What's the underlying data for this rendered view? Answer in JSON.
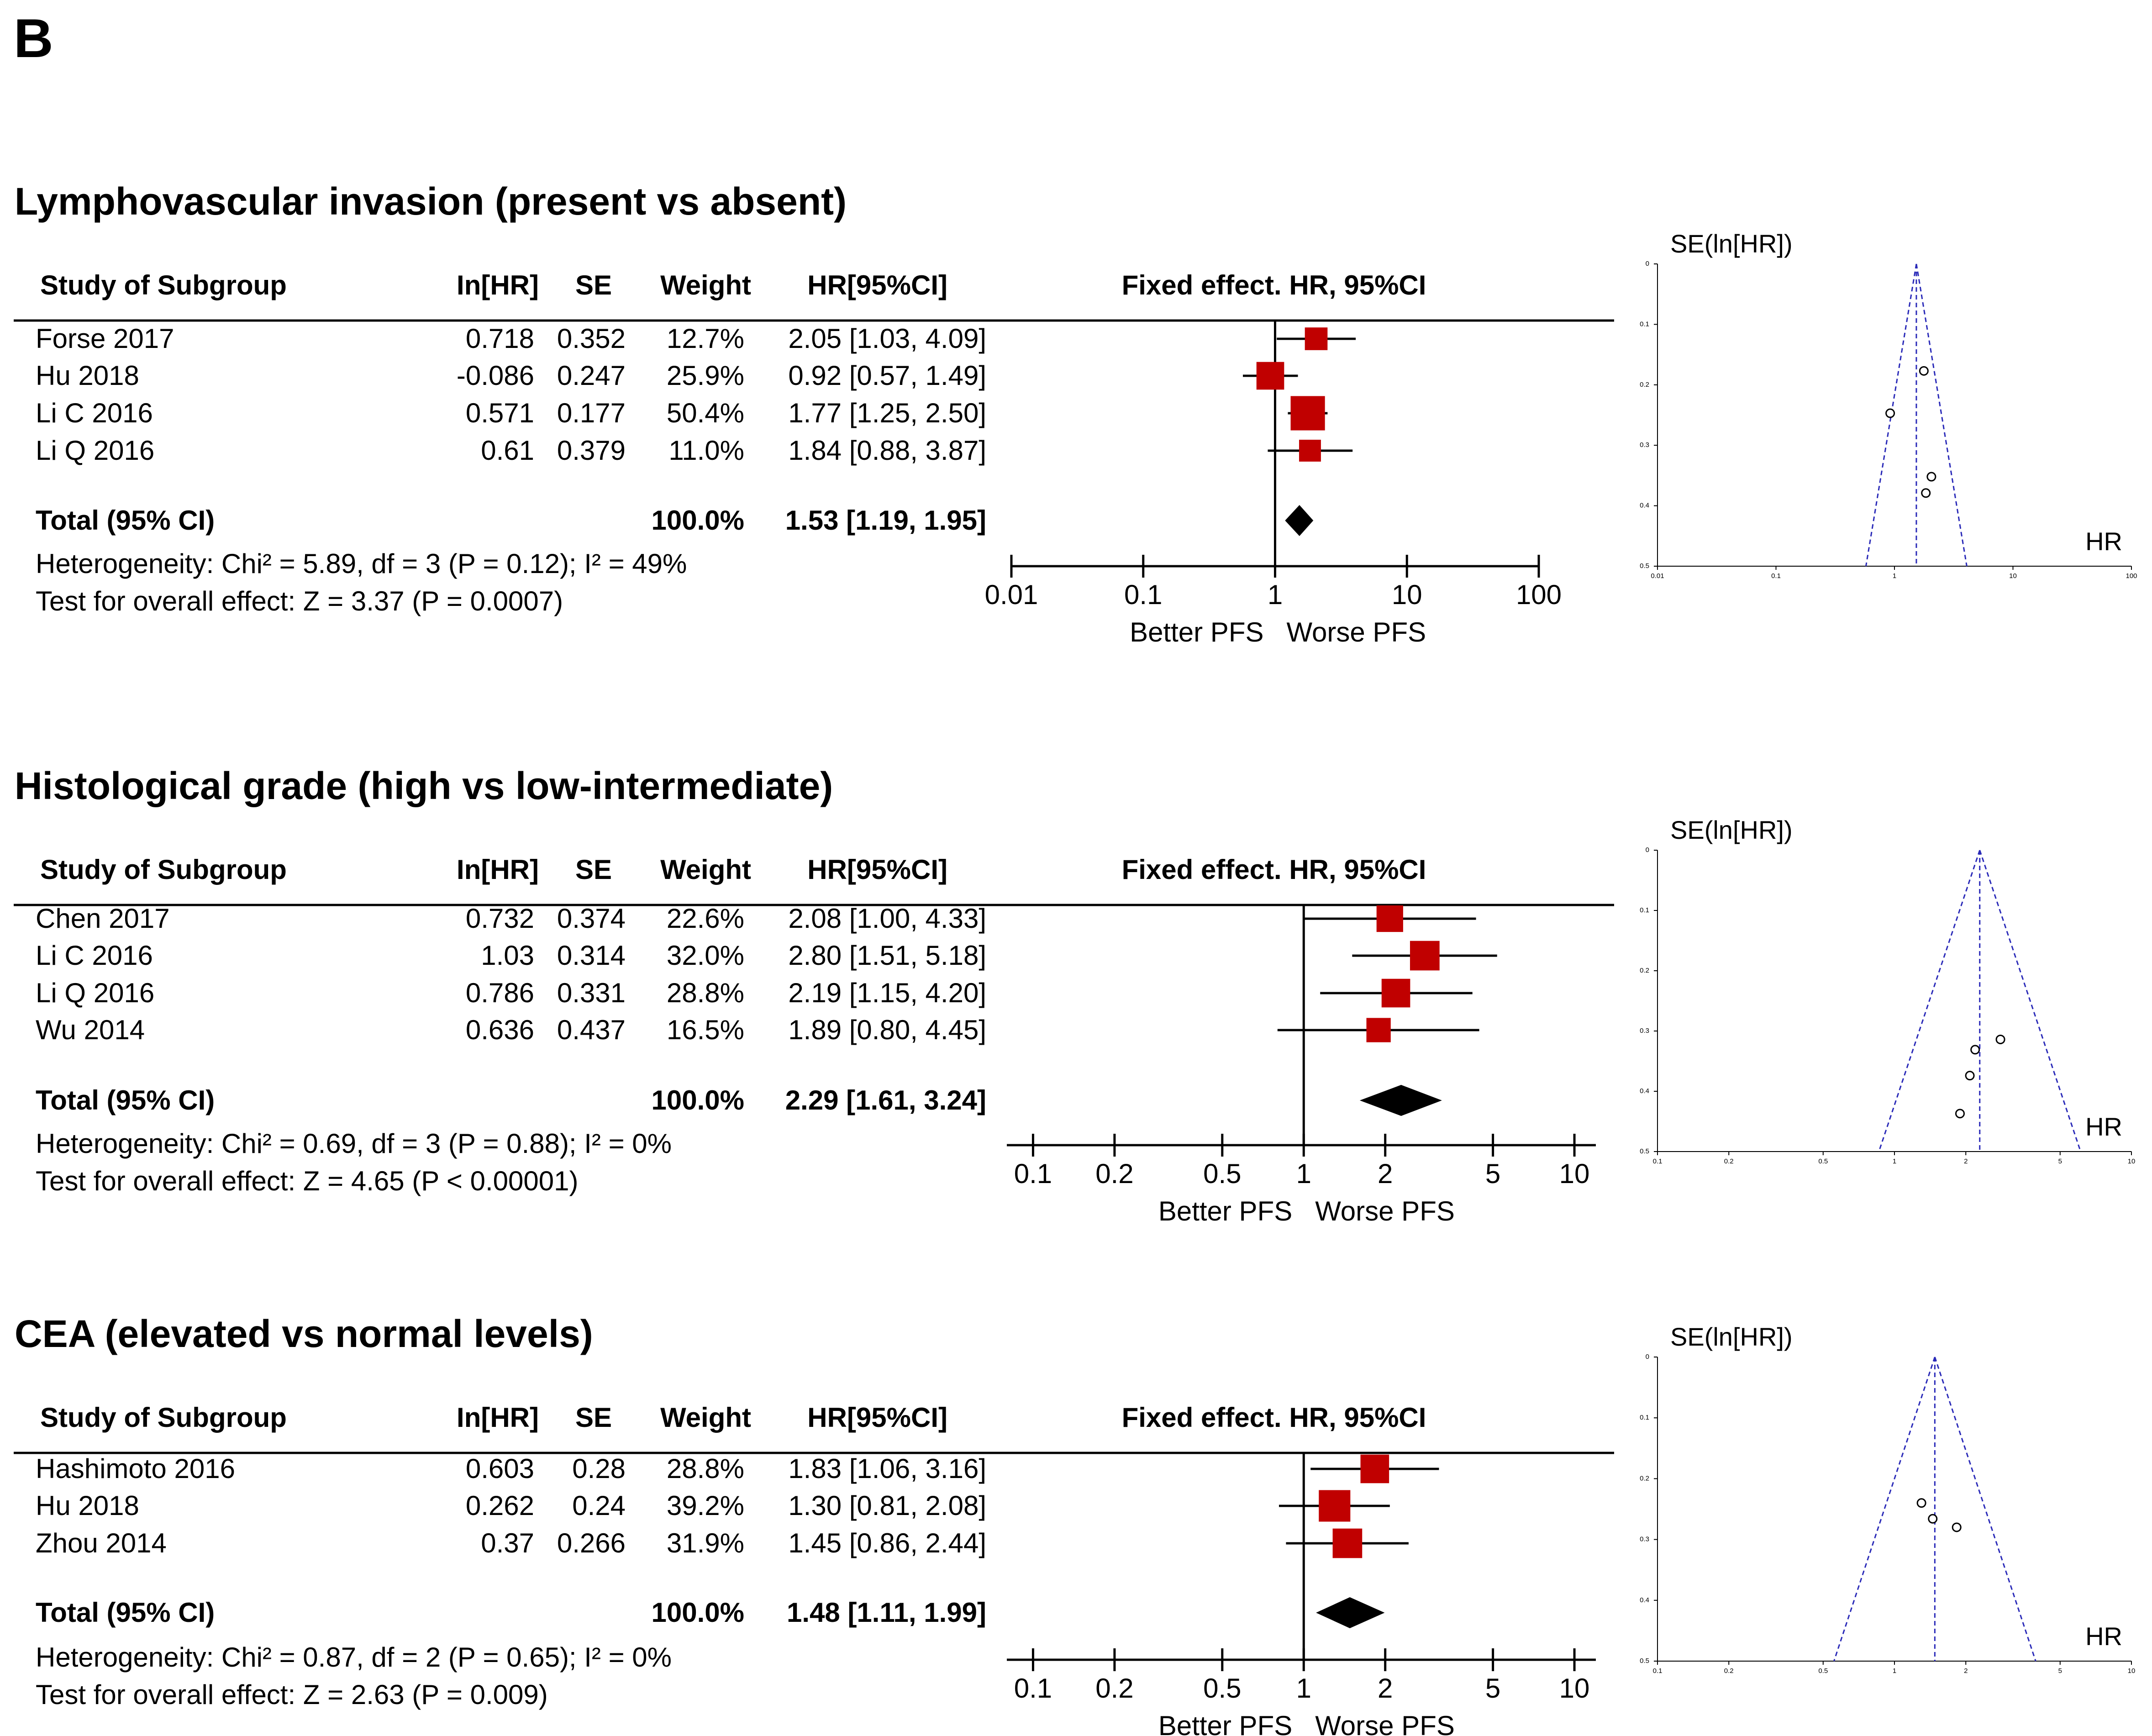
{
  "panel_label": "B",
  "chart_data": [
    {
      "type": "forest",
      "title": "Lymphovascular invasion (present vs absent)",
      "columns": [
        "Study of Subgroup",
        "In[HR]",
        "SE",
        "Weight",
        "HR[95%CI]",
        "Fixed effect. HR, 95%CI"
      ],
      "studies": [
        {
          "name": "Forse 2017",
          "lnhr": "0.718",
          "se": "0.352",
          "weight": "12.7%",
          "ci_text": "2.05 [1.03, 4.09]",
          "hr": 2.05,
          "lo": 1.03,
          "hi": 4.09,
          "w": 12.7
        },
        {
          "name": "Hu 2018",
          "lnhr": "-0.086",
          "se": "0.247",
          "weight": "25.9%",
          "ci_text": "0.92 [0.57, 1.49]",
          "hr": 0.92,
          "lo": 0.57,
          "hi": 1.49,
          "w": 25.9
        },
        {
          "name": "Li C 2016",
          "lnhr": "0.571",
          "se": "0.177",
          "weight": "50.4%",
          "ci_text": "1.77 [1.25, 2.50]",
          "hr": 1.77,
          "lo": 1.25,
          "hi": 2.5,
          "w": 50.4
        },
        {
          "name": "Li Q 2016",
          "lnhr": "0.61",
          "se": "0.379",
          "weight": "11.0%",
          "ci_text": "1.84 [0.88, 3.87]",
          "hr": 1.84,
          "lo": 0.88,
          "hi": 3.87,
          "w": 11.0
        }
      ],
      "total": {
        "label": "Total (95% CI)",
        "weight": "100.0%",
        "ci_text": "1.53 [1.19, 1.95]",
        "hr": 1.53,
        "lo": 1.19,
        "hi": 1.95
      },
      "heterogeneity": "Heterogeneity: Chi² = 5.89, df = 3 (P = 0.12); I² = 49%",
      "overall_effect": "Test for overall effect: Z = 3.37 (P = 0.0007)",
      "x_scale": "log",
      "xlim": [
        0.01,
        100
      ],
      "x_ticks": [
        0.01,
        0.1,
        1,
        10,
        100
      ],
      "x_tick_labels": [
        "0.01",
        "0.1",
        "1",
        "10",
        "100"
      ],
      "favours_left": "Better PFS",
      "favours_right": "Worse PFS",
      "funnel": {
        "type": "scatter",
        "ylabel": "SE(ln[HR])",
        "xlabel": "HR",
        "x_scale": "log",
        "xlim": [
          0.01,
          100
        ],
        "x_ticks": [
          0.01,
          0.1,
          1,
          10,
          100
        ],
        "x_tick_labels": [
          "0.01",
          "0.1",
          "1",
          "10",
          "100"
        ],
        "ylim": [
          0,
          0.5
        ],
        "y_ticks": [
          0,
          0.1,
          0.2,
          0.3,
          0.4,
          0.5
        ],
        "y_tick_labels": [
          "0",
          "0.1",
          "0.2",
          "0.3",
          "0.4",
          "0.5"
        ],
        "pooled_hr": 1.53
      }
    },
    {
      "type": "forest",
      "title": "Histological grade (high vs low-intermediate)",
      "columns": [
        "Study of Subgroup",
        "In[HR]",
        "SE",
        "Weight",
        "HR[95%CI]",
        "Fixed effect. HR, 95%CI"
      ],
      "studies": [
        {
          "name": "Chen 2017",
          "lnhr": "0.732",
          "se": "0.374",
          "weight": "22.6%",
          "ci_text": "2.08 [1.00, 4.33]",
          "hr": 2.08,
          "lo": 1.0,
          "hi": 4.33,
          "w": 22.6
        },
        {
          "name": "Li C 2016",
          "lnhr": "1.03",
          "se": "0.314",
          "weight": "32.0%",
          "ci_text": "2.80 [1.51, 5.18]",
          "hr": 2.8,
          "lo": 1.51,
          "hi": 5.18,
          "w": 32.0
        },
        {
          "name": "Li Q 2016",
          "lnhr": "0.786",
          "se": "0.331",
          "weight": "28.8%",
          "ci_text": "2.19 [1.15, 4.20]",
          "hr": 2.19,
          "lo": 1.15,
          "hi": 4.2,
          "w": 28.8
        },
        {
          "name": "Wu 2014",
          "lnhr": "0.636",
          "se": "0.437",
          "weight": "16.5%",
          "ci_text": "1.89 [0.80, 4.45]",
          "hr": 1.89,
          "lo": 0.8,
          "hi": 4.45,
          "w": 16.5
        }
      ],
      "total": {
        "label": "Total (95% CI)",
        "weight": "100.0%",
        "ci_text": "2.29 [1.61, 3.24]",
        "hr": 2.29,
        "lo": 1.61,
        "hi": 3.24
      },
      "heterogeneity": "Heterogeneity: Chi² = 0.69, df = 3 (P = 0.88); I² = 0%",
      "overall_effect": "Test for overall effect: Z = 4.65 (P < 0.00001)",
      "x_scale": "log",
      "xlim": [
        0.08,
        12
      ],
      "x_ticks": [
        0.1,
        0.2,
        0.5,
        1,
        2,
        5,
        10
      ],
      "x_tick_labels": [
        "0.1",
        "0.2",
        "0.5",
        "1",
        "2",
        "5",
        "10"
      ],
      "favours_left": "Better PFS",
      "favours_right": "Worse PFS",
      "funnel": {
        "type": "scatter",
        "ylabel": "SE(ln[HR])",
        "xlabel": "HR",
        "x_scale": "log",
        "xlim": [
          0.1,
          10
        ],
        "x_ticks": [
          0.1,
          0.2,
          0.5,
          1,
          2,
          5,
          10
        ],
        "x_tick_labels": [
          "0.1",
          "0.2",
          "0.5",
          "1",
          "2",
          "5",
          "10"
        ],
        "ylim": [
          0,
          0.5
        ],
        "y_ticks": [
          0,
          0.1,
          0.2,
          0.3,
          0.4,
          0.5
        ],
        "y_tick_labels": [
          "0",
          "0.1",
          "0.2",
          "0.3",
          "0.4",
          "0.5"
        ],
        "pooled_hr": 2.29
      }
    },
    {
      "type": "forest",
      "title": "CEA (elevated vs normal levels)",
      "columns": [
        "Study of Subgroup",
        "In[HR]",
        "SE",
        "Weight",
        "HR[95%CI]",
        "Fixed effect. HR, 95%CI"
      ],
      "studies": [
        {
          "name": "Hashimoto 2016",
          "lnhr": "0.603",
          "se": "0.28",
          "weight": "28.8%",
          "ci_text": "1.83 [1.06, 3.16]",
          "hr": 1.83,
          "lo": 1.06,
          "hi": 3.16,
          "w": 28.8
        },
        {
          "name": "Hu 2018",
          "lnhr": "0.262",
          "se": "0.24",
          "weight": "39.2%",
          "ci_text": "1.30 [0.81, 2.08]",
          "hr": 1.3,
          "lo": 0.81,
          "hi": 2.08,
          "w": 39.2
        },
        {
          "name": "Zhou 2014",
          "lnhr": "0.37",
          "se": "0.266",
          "weight": "31.9%",
          "ci_text": "1.45 [0.86, 2.44]",
          "hr": 1.45,
          "lo": 0.86,
          "hi": 2.44,
          "w": 31.9
        }
      ],
      "total": {
        "label": "Total (95% CI)",
        "weight": "100.0%",
        "ci_text": "1.48 [1.11, 1.99]",
        "hr": 1.48,
        "lo": 1.11,
        "hi": 1.99
      },
      "heterogeneity": "Heterogeneity: Chi² = 0.87, df = 2 (P = 0.65); I² = 0%",
      "overall_effect": "Test for overall effect: Z = 2.63 (P = 0.009)",
      "x_scale": "log",
      "xlim": [
        0.08,
        12
      ],
      "x_ticks": [
        0.1,
        0.2,
        0.5,
        1,
        2,
        5,
        10
      ],
      "x_tick_labels": [
        "0.1",
        "0.2",
        "0.5",
        "1",
        "2",
        "5",
        "10"
      ],
      "favours_left": "Better PFS",
      "favours_right": "Worse PFS",
      "funnel": {
        "type": "scatter",
        "ylabel": "SE(ln[HR])",
        "xlabel": "HR",
        "x_scale": "log",
        "xlim": [
          0.1,
          10
        ],
        "x_ticks": [
          0.1,
          0.2,
          0.5,
          1,
          2,
          5,
          10
        ],
        "x_tick_labels": [
          "0.1",
          "0.2",
          "0.5",
          "1",
          "2",
          "5",
          "10"
        ],
        "ylim": [
          0,
          0.5
        ],
        "y_ticks": [
          0,
          0.1,
          0.2,
          0.3,
          0.4,
          0.5
        ],
        "y_tick_labels": [
          "0",
          "0.1",
          "0.2",
          "0.3",
          "0.4",
          "0.5"
        ],
        "pooled_hr": 1.48
      }
    }
  ]
}
